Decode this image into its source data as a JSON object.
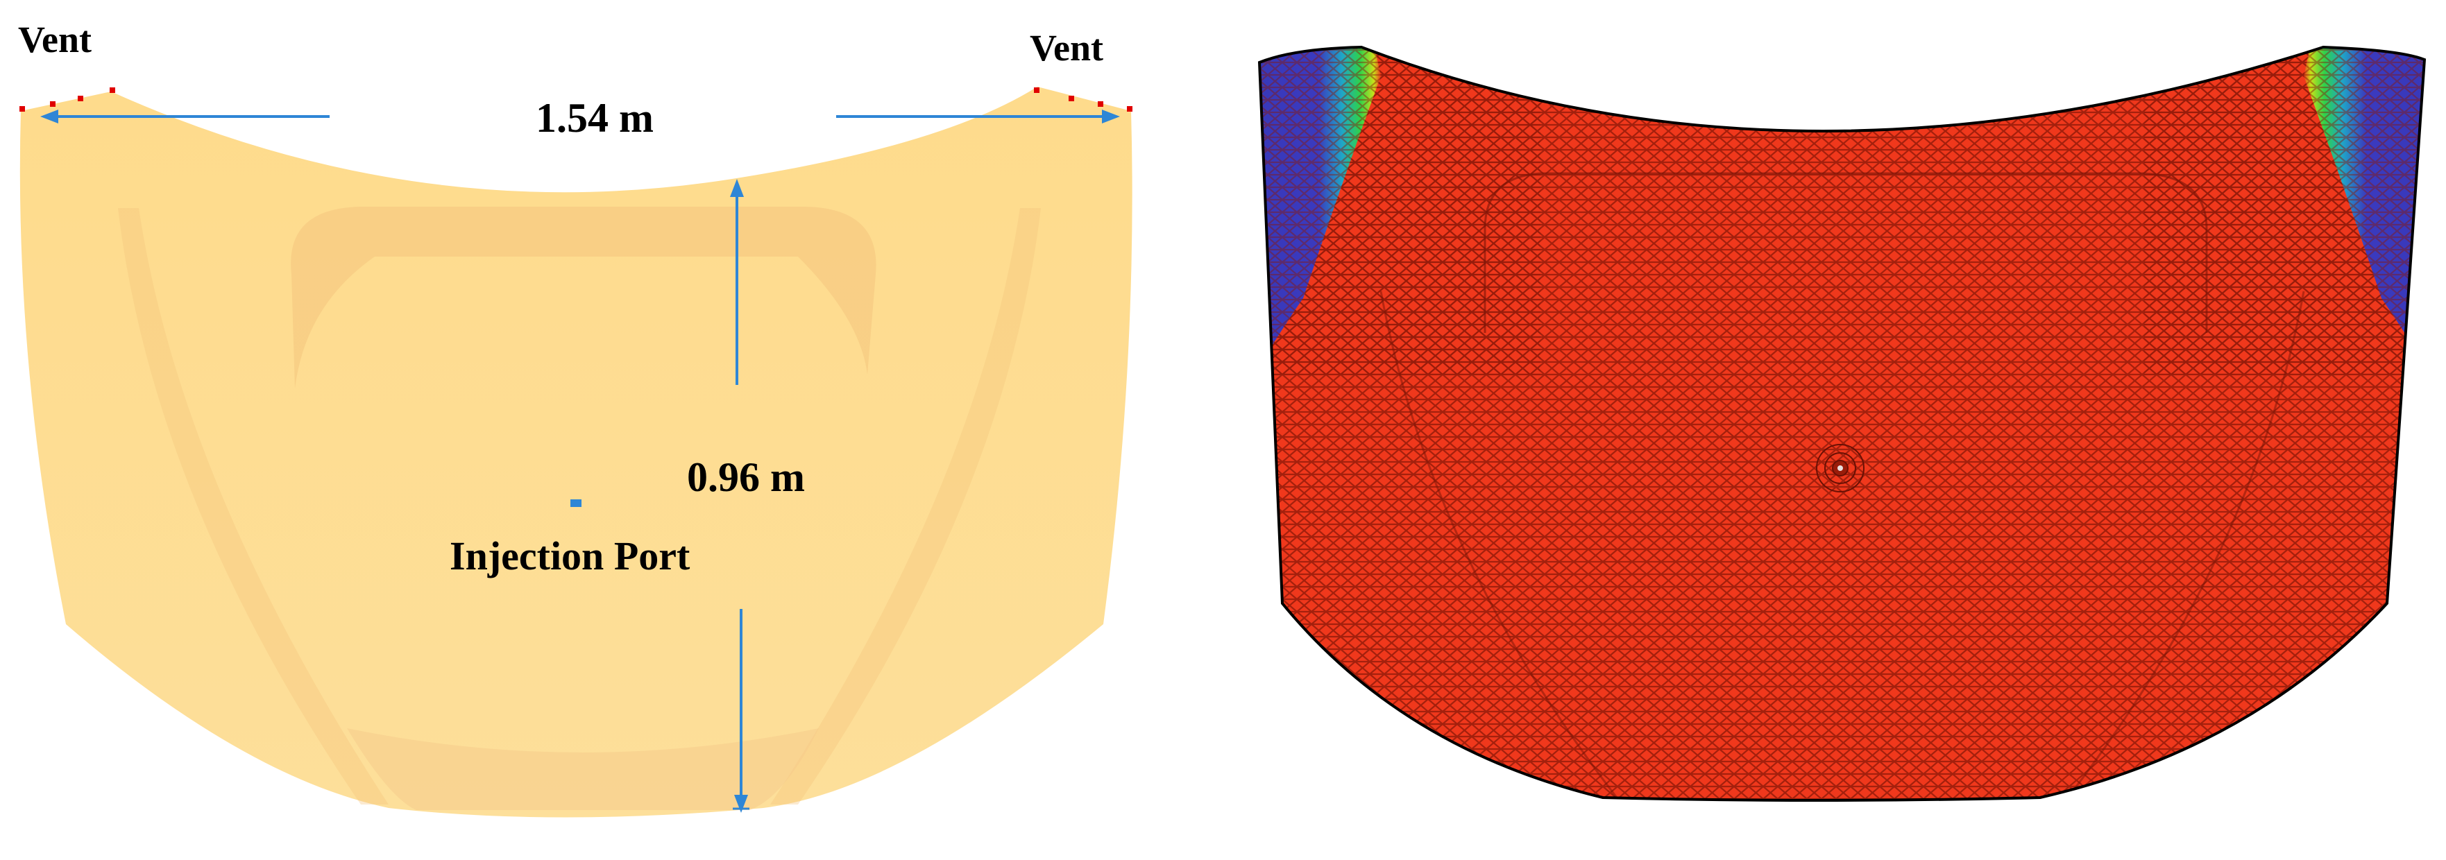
{
  "labels": {
    "vent_left": "Vent",
    "vent_right": "Vent",
    "hood_width": "1.54 m",
    "hood_height": "0.96 m",
    "injection_port": "Injection Port"
  },
  "colors": {
    "hood_fill": "#FDD98A",
    "hood_shadow": "#F2C07A",
    "dimension_arrow": "#2E86D6",
    "vent_marker": "#E00000",
    "port_marker": "#2E86D6",
    "mesh_fill_filled": "#F0381C",
    "mesh_fill_unfilled": "#3A3ABF",
    "mesh_lines": "#8A1808",
    "outline": "#000000"
  }
}
